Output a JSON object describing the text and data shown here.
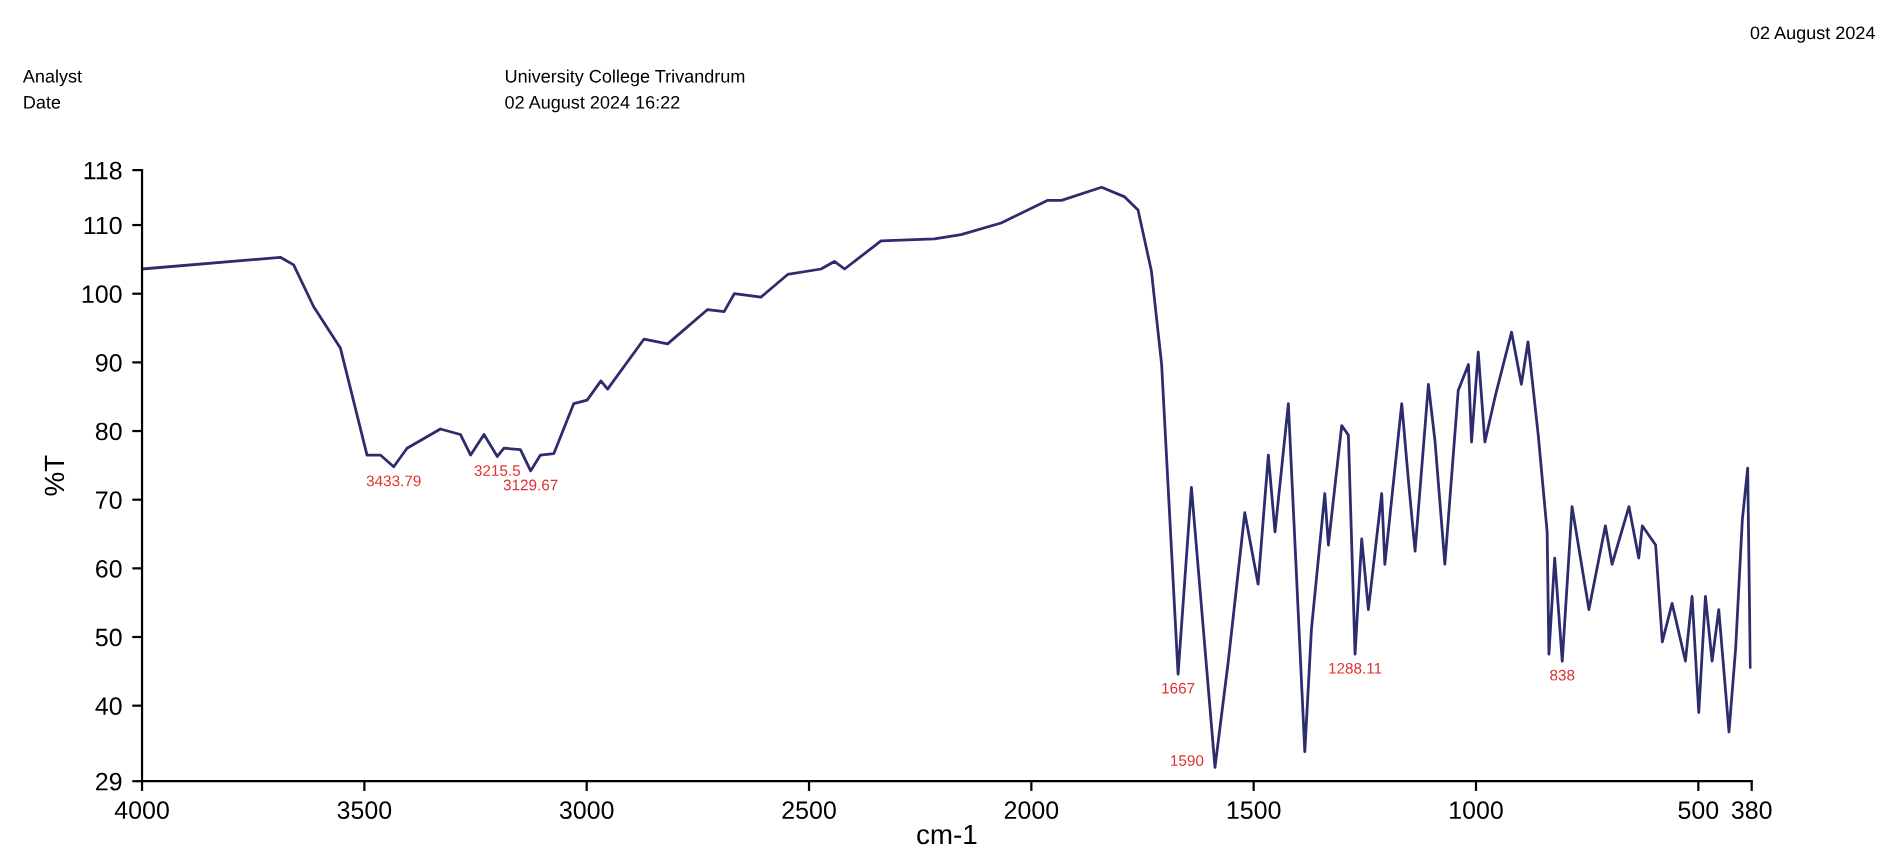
{
  "chart_data": {
    "type": "line",
    "title": "University College Trivandrum",
    "subtitle": "02 August 2024 16:22",
    "xlabel": "cm-1",
    "ylabel": "%T",
    "annotations": [
      "Analyst",
      "Date",
      "02 August 2024",
      {
        "text": "3433.79",
        "x": 3434,
        "y": 74.8
      },
      {
        "text": "3215.5",
        "x": 3201,
        "y": 76.3
      },
      {
        "text": "3129.67",
        "x": 3126,
        "y": 74.2
      },
      {
        "text": "1667",
        "x": 1670,
        "y": 44.6
      },
      {
        "text": "1590",
        "x": 1587,
        "y": 31.0
      },
      {
        "text": "1288.11",
        "x": 1272,
        "y": 47.5
      },
      {
        "text": "838",
        "x": 806,
        "y": 46.5
      }
    ],
    "x": [
      4000,
      3689,
      3659,
      3614,
      3554,
      3494,
      3464,
      3434,
      3404,
      3329,
      3284,
      3261,
      3231,
      3201,
      3186,
      3149,
      3126,
      3104,
      3074,
      3029,
      2999,
      2968,
      2953,
      2871,
      2818,
      2728,
      2691,
      2668,
      2608,
      2548,
      2473,
      2443,
      2420,
      2338,
      2218,
      2158,
      2068,
      1963,
      1932,
      1842,
      1790,
      1760,
      1730,
      1707,
      1670,
      1640,
      1587,
      1557,
      1520,
      1490,
      1467,
      1452,
      1422,
      1385,
      1370,
      1340,
      1332,
      1302,
      1287,
      1272,
      1257,
      1242,
      1212,
      1205,
      1167,
      1152,
      1137,
      1107,
      1092,
      1070,
      1040,
      1017,
      1010,
      995,
      980,
      957,
      920,
      898,
      883,
      860,
      840,
      836,
      823,
      806,
      784,
      746,
      709,
      694,
      656,
      634,
      626,
      596,
      581,
      559,
      529,
      514,
      499,
      484,
      469,
      454,
      431,
      416,
      401,
      389,
      383
    ],
    "series": [
      {
        "color": "#2c2c6e",
        "values": [
          103.6,
          105.3,
          104.2,
          98.1,
          92.1,
          76.5,
          76.5,
          74.8,
          77.5,
          80.3,
          79.5,
          76.5,
          79.5,
          76.3,
          77.5,
          77.3,
          74.2,
          76.5,
          76.7,
          84.0,
          84.5,
          87.3,
          86.1,
          93.4,
          92.7,
          97.7,
          97.4,
          100,
          99.5,
          102.8,
          103.6,
          104.7,
          103.6,
          107.7,
          108,
          108.6,
          110.3,
          113.6,
          113.6,
          115.5,
          114.1,
          112.2,
          103.3,
          89.7,
          44.6,
          71.8,
          31.0,
          46.5,
          68.1,
          57.7,
          76.5,
          65.3,
          84.0,
          33.3,
          51.2,
          70.9,
          63.4,
          80.8,
          79.4,
          47.5,
          64.3,
          54.0,
          70.9,
          60.6,
          84.0,
          72.8,
          62.5,
          86.8,
          78.4,
          60.6,
          85.9,
          89.7,
          78.4,
          91.5,
          78.4,
          85.0,
          94.4,
          86.8,
          93.0,
          79.4,
          65.3,
          47.5,
          61.5,
          46.5,
          69.0,
          54.0,
          66.2,
          60.6,
          69.0,
          61.5,
          66.2,
          63.4,
          49.3,
          54.9,
          46.5,
          55.9,
          39.0,
          55.9,
          46.5,
          54.0,
          36.2,
          48.4,
          67.1,
          74.6,
          45.6
        ]
      }
    ],
    "xlim": [
      4000,
      380
    ],
    "ylim": [
      29,
      118
    ],
    "xticks": [
      4000,
      3500,
      3000,
      2500,
      2000,
      1500,
      1000,
      500,
      380
    ],
    "yticks": [
      29,
      40,
      50,
      60,
      70,
      80,
      90,
      100,
      110,
      118
    ],
    "grid": false,
    "legend": false
  }
}
